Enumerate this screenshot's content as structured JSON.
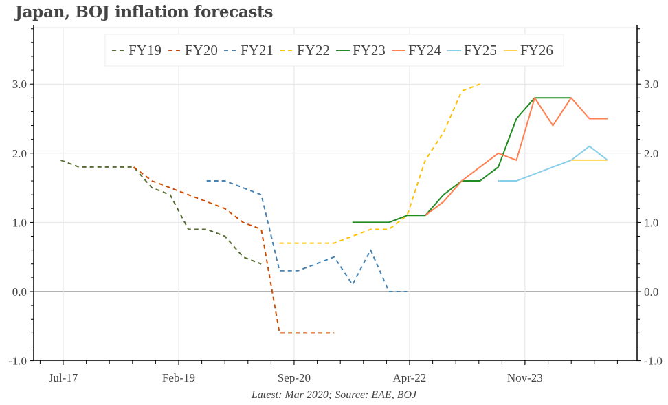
{
  "chart_data": {
    "type": "line",
    "title": "Japan, BOJ inflation forecasts",
    "footer": "Latest: Mar 2020; Source: EAE, BOJ",
    "xlabel": "",
    "ylabel": "",
    "x_ticks": [
      "Jul-17",
      "Feb-19",
      "Sep-20",
      "Apr-22",
      "Nov-23"
    ],
    "y_ticks": [
      "-1.0",
      "0.0",
      "1.0",
      "2.0",
      "3.0"
    ],
    "ylim": [
      -1.0,
      3.0
    ],
    "xlim": [
      "May-17",
      "Apr-25"
    ],
    "grid": true,
    "legend_position": "top",
    "series": [
      {
        "name": "FY19",
        "color": "#556b2f",
        "dash": true,
        "x": [
          "Jul-17",
          "Oct-17",
          "Jan-18",
          "Apr-18",
          "Jul-18",
          "Oct-18",
          "Jan-19",
          "Apr-19",
          "Jul-19",
          "Oct-19",
          "Jan-20",
          "Apr-20"
        ],
        "y": [
          1.9,
          1.8,
          1.8,
          1.8,
          1.8,
          1.5,
          1.4,
          0.9,
          0.9,
          0.8,
          0.5,
          0.4
        ]
      },
      {
        "name": "FY20",
        "color": "#cc4c02",
        "dash": true,
        "x": [
          "Jul-18",
          "Oct-18",
          "Jan-19",
          "Apr-19",
          "Jul-19",
          "Oct-19",
          "Jan-20",
          "Apr-20",
          "Jul-20",
          "Oct-20",
          "Jan-21",
          "Apr-21"
        ],
        "y": [
          1.8,
          1.6,
          1.5,
          1.4,
          1.3,
          1.2,
          1.0,
          0.9,
          -0.6,
          -0.6,
          -0.6,
          -0.6
        ]
      },
      {
        "name": "FY21",
        "color": "#4682b4",
        "dash": true,
        "x": [
          "Jul-19",
          "Oct-19",
          "Jan-20",
          "Apr-20",
          "Jul-20",
          "Oct-20",
          "Jan-21",
          "Apr-21",
          "Jul-21",
          "Oct-21",
          "Jan-22",
          "Apr-22"
        ],
        "y": [
          1.6,
          1.6,
          1.5,
          1.4,
          0.3,
          0.3,
          0.4,
          0.5,
          0.1,
          0.6,
          0.0,
          0.0
        ]
      },
      {
        "name": "FY22",
        "color": "#ffc000",
        "dash": true,
        "x": [
          "Jul-20",
          "Oct-20",
          "Jan-21",
          "Apr-21",
          "Jul-21",
          "Oct-21",
          "Jan-22",
          "Apr-22",
          "Jul-22",
          "Oct-22",
          "Jan-23",
          "Apr-23"
        ],
        "y": [
          0.7,
          0.7,
          0.7,
          0.7,
          0.8,
          0.9,
          0.9,
          1.1,
          1.9,
          2.3,
          2.9,
          3.0
        ]
      },
      {
        "name": "FY23",
        "color": "#228b22",
        "dash": false,
        "x": [
          "Jul-21",
          "Oct-21",
          "Jan-22",
          "Apr-22",
          "Jul-22",
          "Oct-22",
          "Jan-23",
          "Apr-23",
          "Jul-23",
          "Oct-23",
          "Jan-24",
          "Apr-24",
          "Jul-24"
        ],
        "y": [
          1.0,
          1.0,
          1.0,
          1.1,
          1.1,
          1.4,
          1.6,
          1.6,
          1.8,
          2.5,
          2.8,
          2.8,
          2.8
        ]
      },
      {
        "name": "FY24",
        "color": "#ff7f50",
        "dash": false,
        "x": [
          "Jul-22",
          "Oct-22",
          "Jan-23",
          "Apr-23",
          "Jul-23",
          "Oct-23",
          "Jan-24",
          "Apr-24",
          "Jul-24",
          "Oct-24",
          "Jan-25"
        ],
        "y": [
          1.1,
          1.3,
          1.6,
          1.8,
          2.0,
          1.9,
          2.8,
          2.4,
          2.8,
          2.5,
          2.5
        ]
      },
      {
        "name": "FY25",
        "color": "#87ceeb",
        "dash": false,
        "x": [
          "Jul-23",
          "Oct-23",
          "Jan-24",
          "Apr-24",
          "Jul-24",
          "Oct-24",
          "Jan-25"
        ],
        "y": [
          1.6,
          1.6,
          1.7,
          1.8,
          1.9,
          2.1,
          1.9
        ]
      },
      {
        "name": "FY26",
        "color": "#ffd54f",
        "dash": false,
        "x": [
          "Jul-24",
          "Oct-24",
          "Jan-25"
        ],
        "y": [
          1.9,
          1.9,
          1.9
        ]
      }
    ]
  }
}
